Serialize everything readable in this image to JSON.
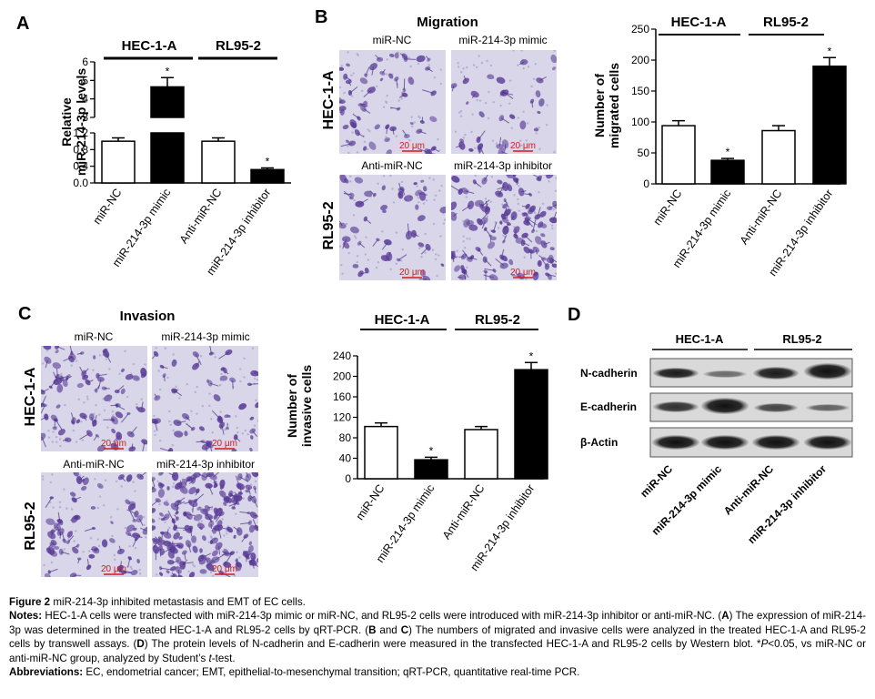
{
  "figure": {
    "panel_letters": {
      "A": "A",
      "B": "B",
      "C": "C",
      "D": "D"
    },
    "groups": {
      "hec": "HEC-1-A",
      "rl": "RL95-2"
    },
    "panel_a": {
      "ylabel_line1": "Relative",
      "ylabel_line2": "miR-214-3p levels",
      "yticks_upper": [
        "6",
        "5",
        "4",
        "3"
      ],
      "yticks_lower": [
        "1.2",
        "0.8",
        "0.4",
        "0.0"
      ]
    },
    "panel_b": {
      "title": "Migration",
      "images": {
        "tl": "miR-NC",
        "tr": "miR-214-3p mimic",
        "bl": "Anti-miR-NC",
        "br": "miR-214-3p inhibitor"
      },
      "ylabel_line1": "Number of",
      "ylabel_line2": "migrated cells",
      "yticks": [
        "250",
        "200",
        "150",
        "100",
        "50",
        "0"
      ]
    },
    "panel_c": {
      "title": "Invasion",
      "ylabel_line1": "Number of",
      "ylabel_line2": "invasive cells",
      "yticks": [
        "240",
        "200",
        "160",
        "120",
        "80",
        "40",
        "0"
      ]
    },
    "panel_d": {
      "bands": [
        "N-cadherin",
        "E-cadherin",
        "β-Actin"
      ],
      "lanes": [
        "miR-NC",
        "miR-214-3p mimic",
        "Anti-miR-NC",
        "miR-214-3p inhibitor"
      ]
    },
    "categories": [
      "miR-NC",
      "miR-214-3p mimic",
      "Anti-miR-NC",
      "miR-214-3p inhibitor"
    ],
    "scale_bar": "20 μm",
    "significance": "*"
  },
  "chart_data": [
    {
      "type": "bar",
      "panel": "A",
      "categories": [
        "miR-NC",
        "miR-214-3p mimic",
        "Anti-miR-NC",
        "miR-214-3p inhibitor"
      ],
      "values": [
        1.0,
        4.65,
        1.0,
        0.32
      ],
      "errors": [
        0.08,
        0.5,
        0.08,
        0.04
      ],
      "fill": [
        "#ffffff",
        "#000000",
        "#ffffff",
        "#000000"
      ],
      "significant": [
        false,
        true,
        false,
        true
      ],
      "ylabel": "Relative miR-214-3p levels",
      "ylim": [
        0,
        6
      ],
      "axis_break": [
        1.2,
        3
      ]
    },
    {
      "type": "bar",
      "panel": "B",
      "categories": [
        "miR-NC",
        "miR-214-3p mimic",
        "Anti-miR-NC",
        "miR-214-3p inhibitor"
      ],
      "values": [
        94,
        38,
        86,
        190
      ],
      "errors": [
        8,
        3,
        8,
        14
      ],
      "fill": [
        "#ffffff",
        "#000000",
        "#ffffff",
        "#000000"
      ],
      "significant": [
        false,
        true,
        false,
        true
      ],
      "ylabel": "Number of migrated cells",
      "ylim": [
        0,
        250
      ]
    },
    {
      "type": "bar",
      "panel": "C",
      "categories": [
        "miR-NC",
        "miR-214-3p mimic",
        "Anti-miR-NC",
        "miR-214-3p inhibitor"
      ],
      "values": [
        102,
        37,
        96,
        213
      ],
      "errors": [
        7,
        5,
        6,
        14
      ],
      "fill": [
        "#ffffff",
        "#000000",
        "#ffffff",
        "#000000"
      ],
      "significant": [
        false,
        true,
        false,
        true
      ],
      "ylabel": "Number of invasive cells",
      "ylim": [
        0,
        240
      ]
    }
  ],
  "caption": {
    "figure_label": "Figure 2",
    "figure_title": " miR-214-3p inhibited metastasis and EMT of EC cells.",
    "notes_label": "Notes:",
    "notes_p1": " HEC-1-A cells were transfected with miR-214-3p mimic or miR-NC, and RL95-2 cells were introduced with miR-214-3p inhibitor or anti-miR-NC. (",
    "notes_A": "A",
    "notes_p2": ") The expression of miR-214-3p was determined in the treated HEC-1-A and RL95-2 cells by qRT-PCR. (",
    "notes_B": "B",
    "notes_and": " and ",
    "notes_C": "C",
    "notes_p3": ") The numbers of migrated and invasive cells were analyzed in the treated HEC-1-A and RL95-2 cells by transwell assays. (",
    "notes_D": "D",
    "notes_p4": ") The protein levels of N-cadherin and E-cadherin were measured in the transfected HEC-1-A and RL95-2 cells by Western blot. *",
    "notes_p": "P",
    "notes_p5": "<0.05, vs miR-NC or anti-miR-NC group, analyzed by Student’s ",
    "notes_t": "t",
    "notes_p6": "-test.",
    "abbrev_label": "Abbreviations:",
    "abbrev_text": " EC, endometrial cancer; EMT, epithelial-to-mesenchymal transition; qRT-PCR, quantitative real-time PCR."
  }
}
